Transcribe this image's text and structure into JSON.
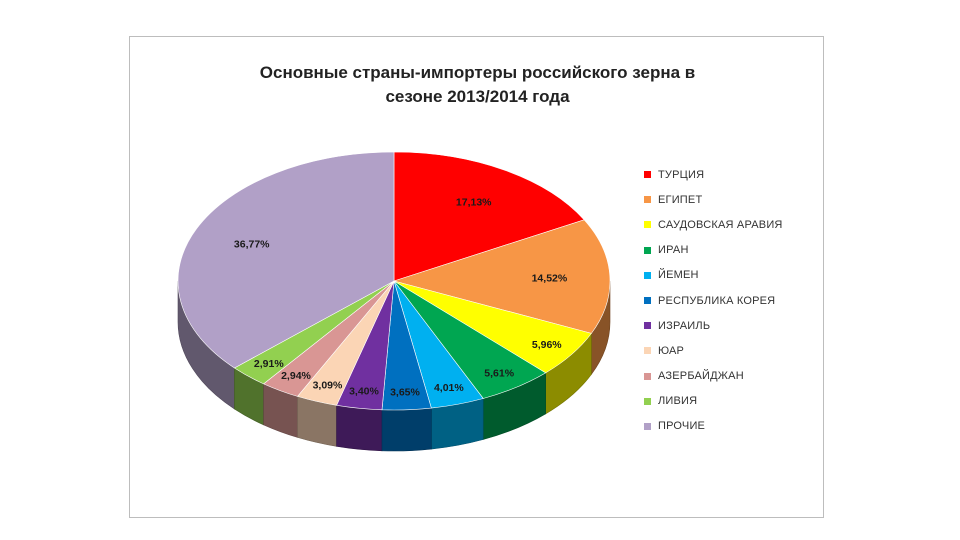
{
  "chart_data": {
    "type": "pie",
    "title": "Основные страны-импортеры российского зерна в сезоне 2013/2014 года",
    "title_lines": [
      "Основные страны-импортеры российского зерна в",
      "сезоне 2013/2014 года"
    ],
    "legend_position": "right",
    "style": "3d",
    "slices": [
      {
        "name": "ТУРЦИЯ",
        "value": 17.13,
        "label": "17,13%",
        "color": "#ff0000"
      },
      {
        "name": "ЕГИПЕТ",
        "value": 14.52,
        "label": "14,52%",
        "color": "#f79646"
      },
      {
        "name": "САУДОВСКАЯ АРАВИЯ",
        "value": 5.96,
        "label": "5,96%",
        "color": "#ffff00"
      },
      {
        "name": "ИРАН",
        "value": 5.61,
        "label": "5,61%",
        "color": "#00a651"
      },
      {
        "name": "ЙЕМЕН",
        "value": 4.01,
        "label": "4,01%",
        "color": "#00b0f0"
      },
      {
        "name": "РЕСПУБЛИКА КОРЕЯ",
        "value": 3.65,
        "label": "3,65%",
        "color": "#0070c0"
      },
      {
        "name": "ИЗРАИЛЬ",
        "value": 3.4,
        "label": "3,40%",
        "color": "#7030a0"
      },
      {
        "name": "ЮАР",
        "value": 3.09,
        "label": "3,09%",
        "color": "#fbd5b5"
      },
      {
        "name": "АЗЕРБАЙДЖАН",
        "value": 2.94,
        "label": "2,94%",
        "color": "#d99694"
      },
      {
        "name": "ЛИВИЯ",
        "value": 2.91,
        "label": "2,91%",
        "color": "#92d050"
      },
      {
        "name": "ПРОЧИЕ",
        "value": 36.77,
        "label": "36,77%",
        "color": "#b1a0c7"
      }
    ]
  }
}
